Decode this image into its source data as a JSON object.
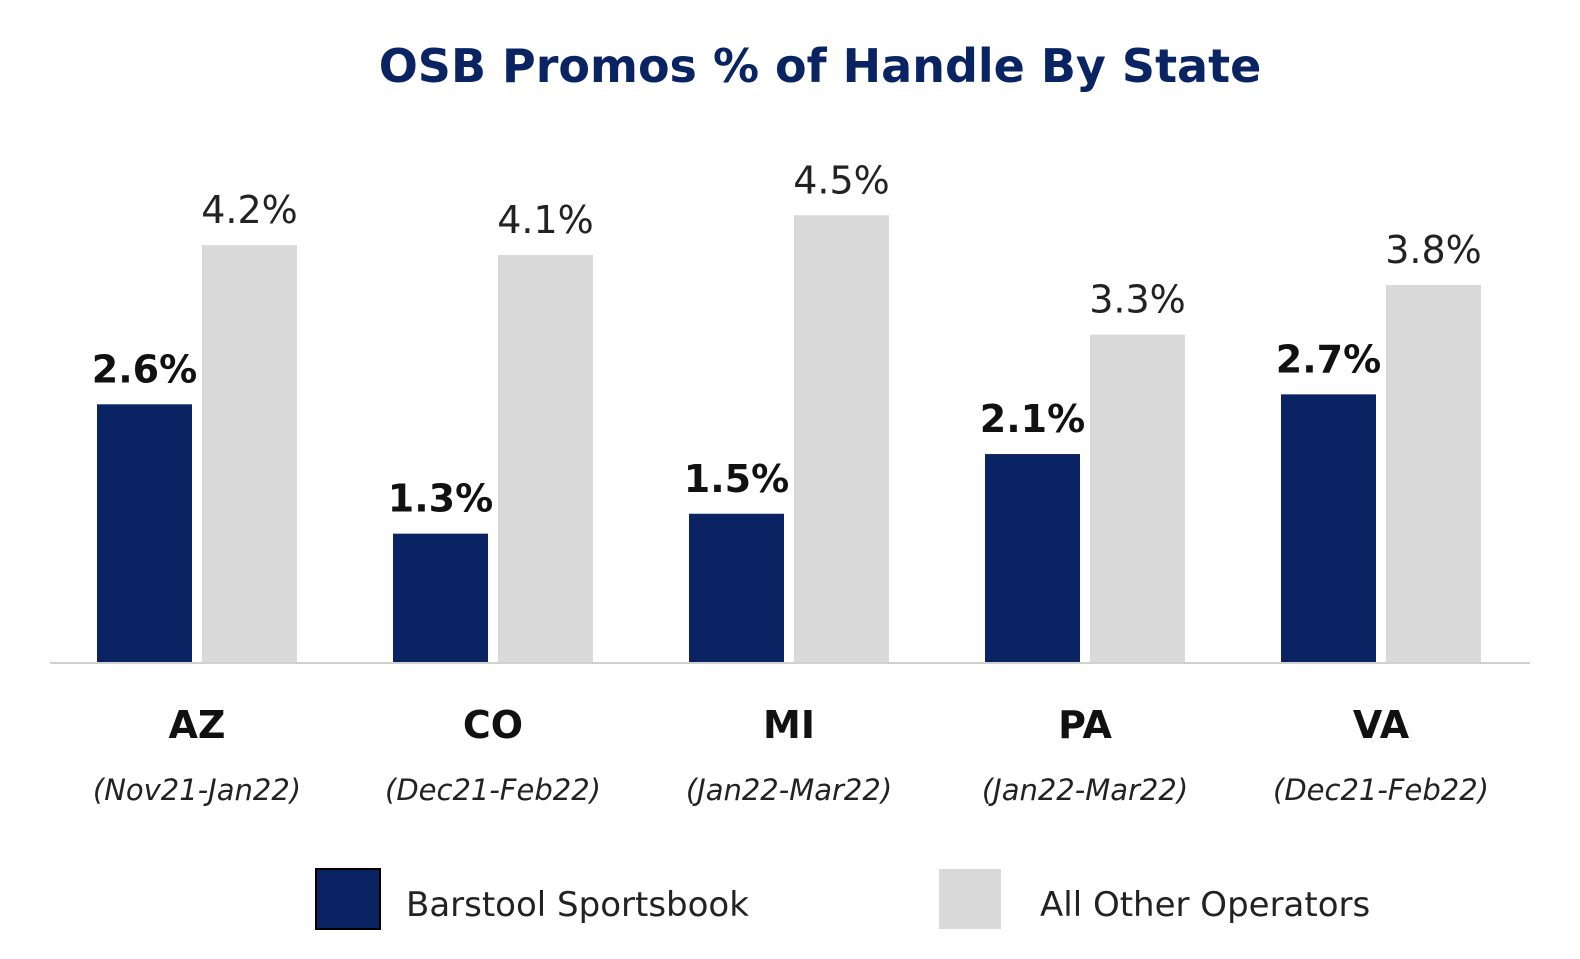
{
  "chart_data": {
    "type": "bar",
    "title": "OSB Promos % of Handle By State",
    "categories": [
      "AZ",
      "CO",
      "MI",
      "PA",
      "VA"
    ],
    "periods": [
      "(Nov21-Jan22)",
      "(Dec21-Feb22)",
      "(Jan22-Mar22)",
      "(Jan22-Mar22)",
      "(Dec21-Feb22)"
    ],
    "series": [
      {
        "name": "Barstool Sportsbook",
        "color": "#0a2463",
        "values": [
          2.6,
          1.3,
          1.5,
          2.1,
          2.7
        ],
        "labels": [
          "2.6%",
          "1.3%",
          "1.5%",
          "2.1%",
          "2.7%"
        ]
      },
      {
        "name": "All Other Operators",
        "color": "#d9d9d9",
        "values": [
          4.2,
          4.1,
          4.5,
          3.3,
          3.8
        ],
        "labels": [
          "4.2%",
          "4.1%",
          "4.5%",
          "3.3%",
          "3.8%"
        ]
      }
    ],
    "ylim": [
      0,
      4.5
    ],
    "grid": false,
    "legend_position": "bottom"
  }
}
